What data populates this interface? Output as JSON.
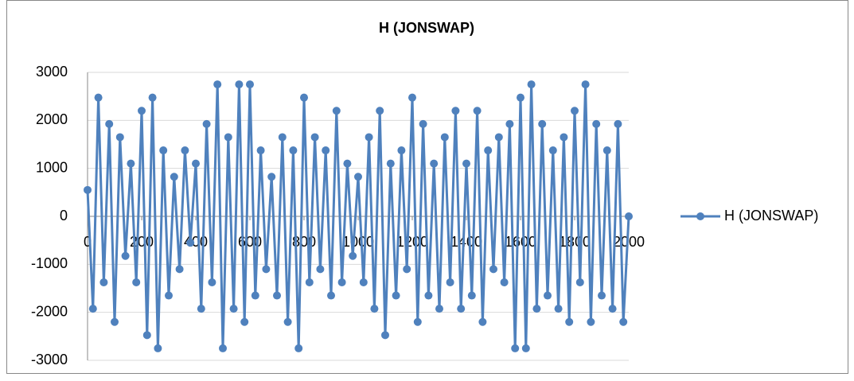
{
  "chart_data": {
    "type": "line",
    "title": "H (JONSWAP)",
    "x": [
      0,
      20,
      40,
      60,
      80,
      100,
      120,
      140,
      160,
      180,
      200,
      220,
      240,
      260,
      280,
      300,
      320,
      340,
      360,
      380,
      400,
      420,
      440,
      460,
      480,
      500,
      520,
      540,
      560,
      580,
      600,
      620,
      640,
      660,
      680,
      700,
      720,
      740,
      760,
      780,
      800,
      820,
      840,
      860,
      880,
      900,
      920,
      940,
      960,
      980,
      1000,
      1020,
      1040,
      1060,
      1080,
      1100,
      1120,
      1140,
      1160,
      1180,
      1200,
      1220,
      1240,
      1260,
      1280,
      1300,
      1320,
      1340,
      1360,
      1380,
      1400,
      1420,
      1440,
      1460,
      1480,
      1500,
      1520,
      1540,
      1560,
      1580,
      1600,
      1620,
      1640,
      1660,
      1680,
      1700,
      1720,
      1740,
      1760,
      1780,
      1800,
      1820,
      1840,
      1860,
      1880,
      1900,
      1920,
      1940,
      1960,
      1980,
      2000
    ],
    "series": [
      {
        "name": "H (JONSWAP)",
        "color": "#4f81bd",
        "values": [
          550,
          -1925,
          2475,
          -1375,
          1925,
          -2200,
          1650,
          -825,
          1100,
          -1375,
          2200,
          -2475,
          2475,
          -2750,
          1375,
          -1650,
          825,
          -1100,
          1375,
          -550,
          1100,
          -1925,
          1925,
          -1375,
          2750,
          -2750,
          1650,
          -1925,
          2750,
          -2200,
          2750,
          -1650,
          1375,
          -1100,
          825,
          -1650,
          1650,
          -2200,
          1375,
          -2750,
          2475,
          -1375,
          1650,
          -1100,
          1375,
          -1650,
          2200,
          -1375,
          1100,
          -825,
          825,
          -1375,
          1650,
          -1925,
          2200,
          -2475,
          1100,
          -1650,
          1375,
          -1100,
          2475,
          -2200,
          1925,
          -1650,
          1100,
          -1925,
          1650,
          -1375,
          2200,
          -1925,
          1100,
          -1650,
          2200,
          -2200,
          1375,
          -1100,
          1650,
          -1375,
          1925,
          -2750,
          2475,
          -2750,
          2750,
          -1925,
          1925,
          -1650,
          1375,
          -1925,
          1650,
          -2200,
          2200,
          -1375,
          2750,
          -2200,
          1925,
          -1650,
          1375,
          -1925,
          1925,
          -2200,
          0
        ]
      }
    ],
    "xlim": [
      0,
      2000
    ],
    "xticks": [
      0,
      200,
      400,
      600,
      800,
      1000,
      1200,
      1400,
      1600,
      1800,
      2000
    ],
    "ylim": [
      -3000,
      3000
    ],
    "yticks": [
      -3000,
      -2000,
      -1000,
      0,
      1000,
      2000,
      3000
    ],
    "grid": true,
    "legend": "right"
  }
}
